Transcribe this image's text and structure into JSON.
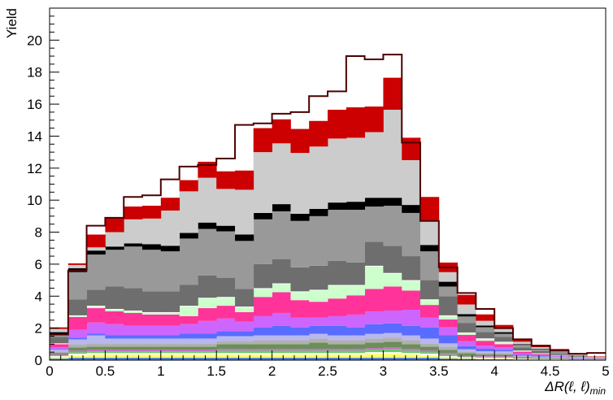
{
  "chart_data": {
    "type": "bar",
    "stacked": true,
    "ylabel": "Yield",
    "xlabel": "ΔR(ℓ, ℓ)_min",
    "xlabel_main": "ΔR(ℓ, ℓ)",
    "xlabel_sub": "min",
    "xlim": [
      0,
      5
    ],
    "ylim": [
      0,
      22
    ],
    "grid": false,
    "x_ticks": [
      "0",
      "0.5",
      "1",
      "1.5",
      "2",
      "2.5",
      "3",
      "3.5",
      "4",
      "4.5",
      "5"
    ],
    "y_ticks": [
      "0",
      "2",
      "4",
      "6",
      "8",
      "10",
      "12",
      "14",
      "16",
      "18",
      "20"
    ],
    "bin_edges": [
      0,
      0.167,
      0.333,
      0.5,
      0.667,
      0.833,
      1.0,
      1.167,
      1.333,
      1.5,
      1.667,
      1.833,
      2.0,
      2.167,
      2.333,
      2.5,
      2.667,
      2.833,
      3.0,
      3.167,
      3.333,
      3.5,
      3.667,
      3.833,
      4.0,
      4.167,
      4.333,
      4.5,
      4.667,
      4.833,
      5.0
    ],
    "series": [
      {
        "color": "#4a7fd4",
        "values": [
          0.1,
          0.15,
          0.15,
          0.15,
          0.15,
          0.15,
          0.15,
          0.15,
          0.15,
          0.15,
          0.15,
          0.15,
          0.15,
          0.15,
          0.15,
          0.15,
          0.15,
          0.15,
          0.15,
          0.15,
          0.15,
          0.1,
          0.08,
          0.06,
          0.05,
          0.04,
          0.03,
          0.02,
          0.01,
          0.01
        ]
      },
      {
        "color": "#ffff66",
        "values": [
          0.1,
          0.15,
          0.2,
          0.2,
          0.2,
          0.2,
          0.2,
          0.2,
          0.2,
          0.2,
          0.2,
          0.2,
          0.2,
          0.2,
          0.2,
          0.2,
          0.2,
          0.25,
          0.25,
          0.2,
          0.15,
          0.1,
          0.05,
          0.05,
          0.05,
          0.03,
          0.02,
          0.02,
          0.01,
          0.01
        ]
      },
      {
        "color": "#ffffff",
        "values": [
          0.05,
          0.1,
          0.1,
          0.1,
          0.1,
          0.1,
          0.1,
          0.1,
          0.1,
          0.1,
          0.1,
          0.1,
          0.1,
          0.1,
          0.1,
          0.1,
          0.1,
          0.1,
          0.1,
          0.1,
          0.1,
          0.05,
          0.05,
          0.05,
          0.05,
          0.02,
          0.02,
          0.02,
          0.01,
          0.01
        ]
      },
      {
        "color": "#66cc66",
        "values": [
          0.05,
          0.1,
          0.1,
          0.1,
          0.1,
          0.1,
          0.1,
          0.1,
          0.1,
          0.15,
          0.15,
          0.15,
          0.15,
          0.15,
          0.15,
          0.15,
          0.15,
          0.15,
          0.2,
          0.15,
          0.1,
          0.1,
          0.05,
          0.05,
          0.05,
          0.02,
          0.02,
          0.02,
          0.01,
          0.01
        ]
      },
      {
        "color": "#cc66cc",
        "values": [
          0.05,
          0.1,
          0.1,
          0.1,
          0.1,
          0.1,
          0.1,
          0.1,
          0.1,
          0.1,
          0.1,
          0.1,
          0.1,
          0.1,
          0.1,
          0.1,
          0.1,
          0.1,
          0.1,
          0.1,
          0.1,
          0.1,
          0.05,
          0.05,
          0.05,
          0.02,
          0.02,
          0.02,
          0.01,
          0.01
        ]
      },
      {
        "color": "#6b8e5a",
        "values": [
          0.1,
          0.2,
          0.2,
          0.2,
          0.2,
          0.2,
          0.2,
          0.2,
          0.2,
          0.3,
          0.3,
          0.3,
          0.3,
          0.3,
          0.4,
          0.3,
          0.3,
          0.35,
          0.35,
          0.3,
          0.25,
          0.2,
          0.15,
          0.1,
          0.1,
          0.05,
          0.04,
          0.03,
          0.02,
          0.01
        ]
      },
      {
        "color": "#b0b0b0",
        "values": [
          0.1,
          0.2,
          0.2,
          0.2,
          0.2,
          0.2,
          0.2,
          0.2,
          0.2,
          0.2,
          0.2,
          0.25,
          0.25,
          0.25,
          0.25,
          0.25,
          0.25,
          0.25,
          0.25,
          0.25,
          0.2,
          0.2,
          0.1,
          0.1,
          0.1,
          0.05,
          0.04,
          0.03,
          0.02,
          0.01
        ]
      },
      {
        "color": "#b8b8ee",
        "values": [
          0.1,
          0.3,
          0.5,
          0.3,
          0.3,
          0.3,
          0.3,
          0.3,
          0.3,
          0.3,
          0.3,
          0.3,
          0.3,
          0.3,
          0.3,
          0.3,
          0.3,
          0.3,
          0.3,
          0.3,
          0.3,
          0.2,
          0.15,
          0.1,
          0.1,
          0.05,
          0.04,
          0.03,
          0.02,
          0.01
        ]
      },
      {
        "color": "#5a6bff",
        "values": [
          0.05,
          0.1,
          0.1,
          0.2,
          0.2,
          0.2,
          0.2,
          0.3,
          0.3,
          0.3,
          0.3,
          0.5,
          0.6,
          0.5,
          0.5,
          0.6,
          0.5,
          0.6,
          0.6,
          0.6,
          0.7,
          0.5,
          0.2,
          0.15,
          0.1,
          0.05,
          0.05,
          0.03,
          0.02,
          0.01
        ]
      },
      {
        "color": "#cc66ff",
        "values": [
          0.1,
          0.5,
          0.7,
          0.7,
          0.6,
          0.6,
          0.6,
          0.6,
          0.8,
          0.8,
          0.6,
          0.7,
          0.8,
          0.6,
          0.5,
          0.6,
          0.8,
          0.8,
          0.8,
          1.0,
          0.6,
          0.5,
          0.3,
          0.2,
          0.15,
          0.1,
          0.05,
          0.03,
          0.02,
          0.01
        ]
      },
      {
        "color": "#ff3399",
        "values": [
          0.2,
          0.8,
          0.9,
          0.8,
          0.8,
          0.7,
          0.7,
          0.5,
          0.8,
          0.8,
          0.6,
          1.2,
          1.3,
          1.1,
          1.0,
          1.1,
          1.2,
          1.4,
          1.5,
          1.2,
          0.8,
          0.5,
          0.4,
          0.3,
          0.2,
          0.1,
          0.05,
          0.03,
          0.02,
          0.01
        ]
      },
      {
        "color": "#ccffcc",
        "values": [
          0.0,
          0.05,
          0.1,
          0.1,
          0.1,
          0.1,
          0.1,
          0.6,
          0.6,
          0.5,
          0.3,
          0.5,
          0.5,
          0.5,
          0.7,
          0.8,
          0.6,
          1.4,
          0.8,
          0.6,
          0.3,
          0.2,
          0.1,
          0.1,
          0.1,
          0.05,
          0.03,
          0.02,
          0.01,
          0.0
        ]
      },
      {
        "color": "#ffffff",
        "values": [
          0.05,
          0.05,
          0.05,
          0.05,
          0.05,
          0.05,
          0.05,
          0.05,
          0.05,
          0.05,
          0.05,
          0.05,
          0.05,
          0.05,
          0.05,
          0.05,
          0.05,
          0.05,
          0.05,
          0.05,
          0.05,
          0.05,
          0.05,
          0.05,
          0.05,
          0.02,
          0.02,
          0.02,
          0.01,
          0.0
        ]
      },
      {
        "color": "#6e6e6e",
        "values": [
          0.4,
          1.0,
          1.0,
          1.4,
          1.4,
          1.3,
          1.3,
          1.3,
          1.4,
          1.2,
          1.1,
          1.5,
          1.5,
          1.5,
          1.5,
          1.5,
          1.4,
          1.5,
          1.7,
          1.5,
          1.2,
          1.2,
          0.6,
          0.4,
          0.3,
          0.2,
          0.15,
          0.1,
          0.05,
          0.03
        ]
      },
      {
        "color": "#999999",
        "values": [
          0.2,
          1.7,
          2.2,
          2.3,
          2.6,
          2.6,
          2.5,
          2.9,
          2.9,
          2.9,
          3.0,
          2.8,
          3.0,
          2.9,
          3.1,
          3.2,
          3.3,
          2.2,
          2.5,
          2.7,
          1.8,
          0.6,
          0.4,
          0.3,
          0.2,
          0.15,
          0.1,
          0.08,
          0.05,
          0.03
        ]
      },
      {
        "color": "#000000",
        "values": [
          0.1,
          0.25,
          0.25,
          0.2,
          0.2,
          0.35,
          0.35,
          0.35,
          0.4,
          0.35,
          0.4,
          0.4,
          0.45,
          0.45,
          0.45,
          0.45,
          0.5,
          0.55,
          0.5,
          0.5,
          0.4,
          0.3,
          0.15,
          0.1,
          0.1,
          0.05,
          0.03,
          0.02,
          0.01,
          0.0
        ]
      },
      {
        "color": "#cccccc",
        "values": [
          0.2,
          0.2,
          0.2,
          0.9,
          1.5,
          1.6,
          2.2,
          2.6,
          2.8,
          2.3,
          2.8,
          3.8,
          3.8,
          3.8,
          3.9,
          4.0,
          4.0,
          4.1,
          5.5,
          2.8,
          1.5,
          0.6,
          0.6,
          0.3,
          0.2,
          0.15,
          0.1,
          0.08,
          0.05,
          0.03
        ]
      },
      {
        "color": "#cc0000",
        "values": [
          0.1,
          0.1,
          0.8,
          0.9,
          0.8,
          0.8,
          0.8,
          0.7,
          1.0,
          1.1,
          1.2,
          1.5,
          1.5,
          1.5,
          1.6,
          1.8,
          1.9,
          1.6,
          2.0,
          1.4,
          1.5,
          0.6,
          0.6,
          0.4,
          0.25,
          0.2,
          0.15,
          0.1,
          0.05,
          0.03
        ]
      }
    ],
    "total": [
      1.6,
      5.6,
      8.4,
      8.9,
      10.2,
      10.3,
      11.3,
      12.1,
      12.2,
      12.6,
      14.7,
      14.8,
      15.4,
      15.5,
      16.5,
      16.8,
      19.0,
      18.8,
      19.1,
      13.6,
      8.7,
      5.8,
      4.2,
      3.2,
      2.0,
      1.3,
      0.9,
      0.6,
      0.4,
      0.45
    ],
    "total_color": "#4d0000"
  }
}
